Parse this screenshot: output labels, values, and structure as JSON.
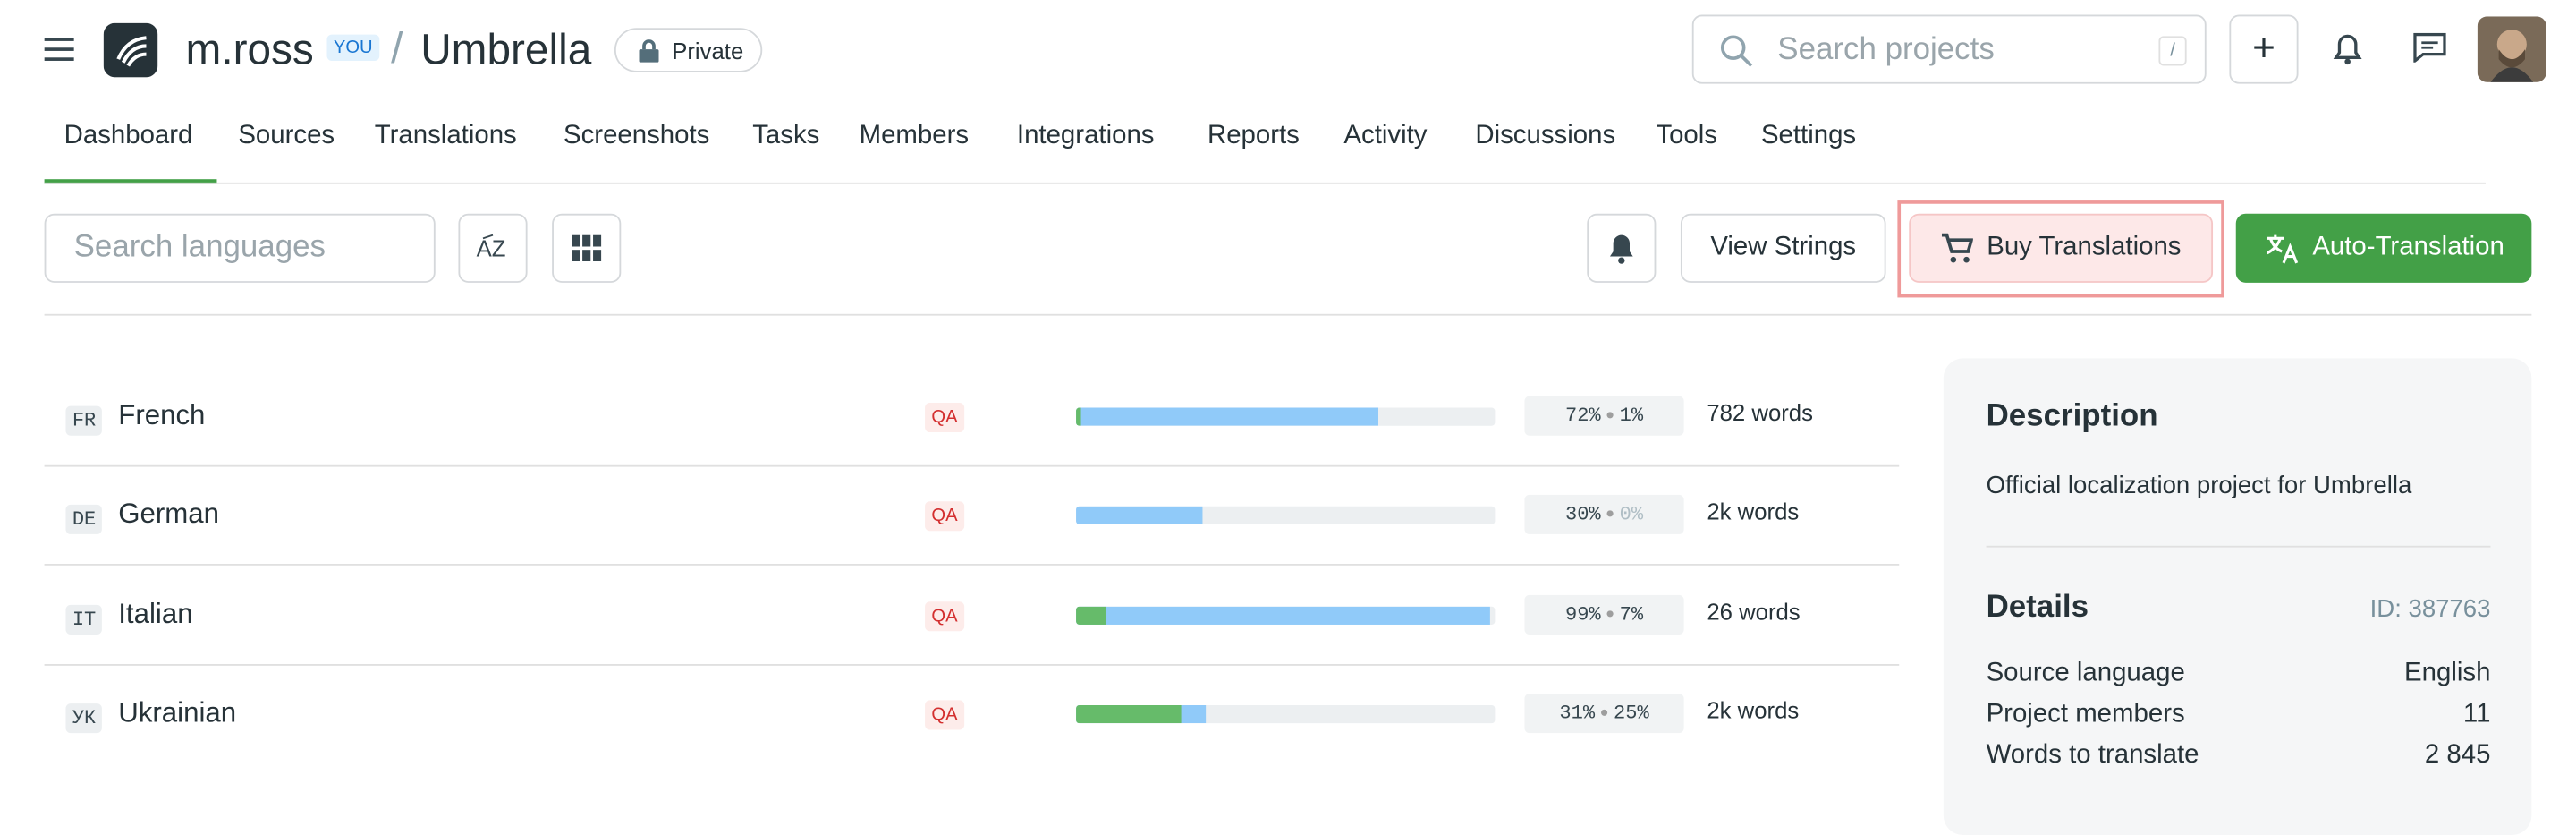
{
  "header": {
    "user": "m.ross",
    "you_badge": "YOU",
    "separator": "/",
    "project": "Umbrella",
    "visibility": "Private",
    "search_placeholder": "Search projects",
    "search_shortcut": "/"
  },
  "tabs": [
    "Dashboard",
    "Sources",
    "Translations",
    "Screenshots",
    "Tasks",
    "Members",
    "Integrations",
    "Reports",
    "Activity",
    "Discussions",
    "Tools",
    "Settings"
  ],
  "toolbar": {
    "search_placeholder": "Search languages",
    "view_strings": "View Strings",
    "buy_translations": "Buy Translations",
    "auto_translation": "Auto-Translation"
  },
  "languages": [
    {
      "code": "FR",
      "name": "French",
      "qa": "QA",
      "translated": {
        "value": 72,
        "label": "72%"
      },
      "approved": {
        "value": 1,
        "label": "1%"
      },
      "words": "782 words"
    },
    {
      "code": "DE",
      "name": "German",
      "qa": "QA",
      "translated": {
        "value": 30,
        "label": "30%"
      },
      "approved": {
        "value": 0,
        "label": "0%"
      },
      "words": "2k words"
    },
    {
      "code": "IT",
      "name": "Italian",
      "qa": "QA",
      "translated": {
        "value": 99,
        "label": "99%"
      },
      "approved": {
        "value": 7,
        "label": "7%"
      },
      "words": "26 words"
    },
    {
      "code": "УК",
      "name": "Ukrainian",
      "qa": "QA",
      "translated": {
        "value": 31,
        "label": "31%"
      },
      "approved": {
        "value": 25,
        "label": "25%"
      },
      "words": "2k words"
    }
  ],
  "panel": {
    "description_title": "Description",
    "description": "Official localization project for Umbrella",
    "details_title": "Details",
    "id": "ID: 387763",
    "details": [
      [
        "Source language",
        "English"
      ],
      [
        "Project members",
        "11"
      ],
      [
        "Words to translate",
        "2 845"
      ]
    ]
  }
}
